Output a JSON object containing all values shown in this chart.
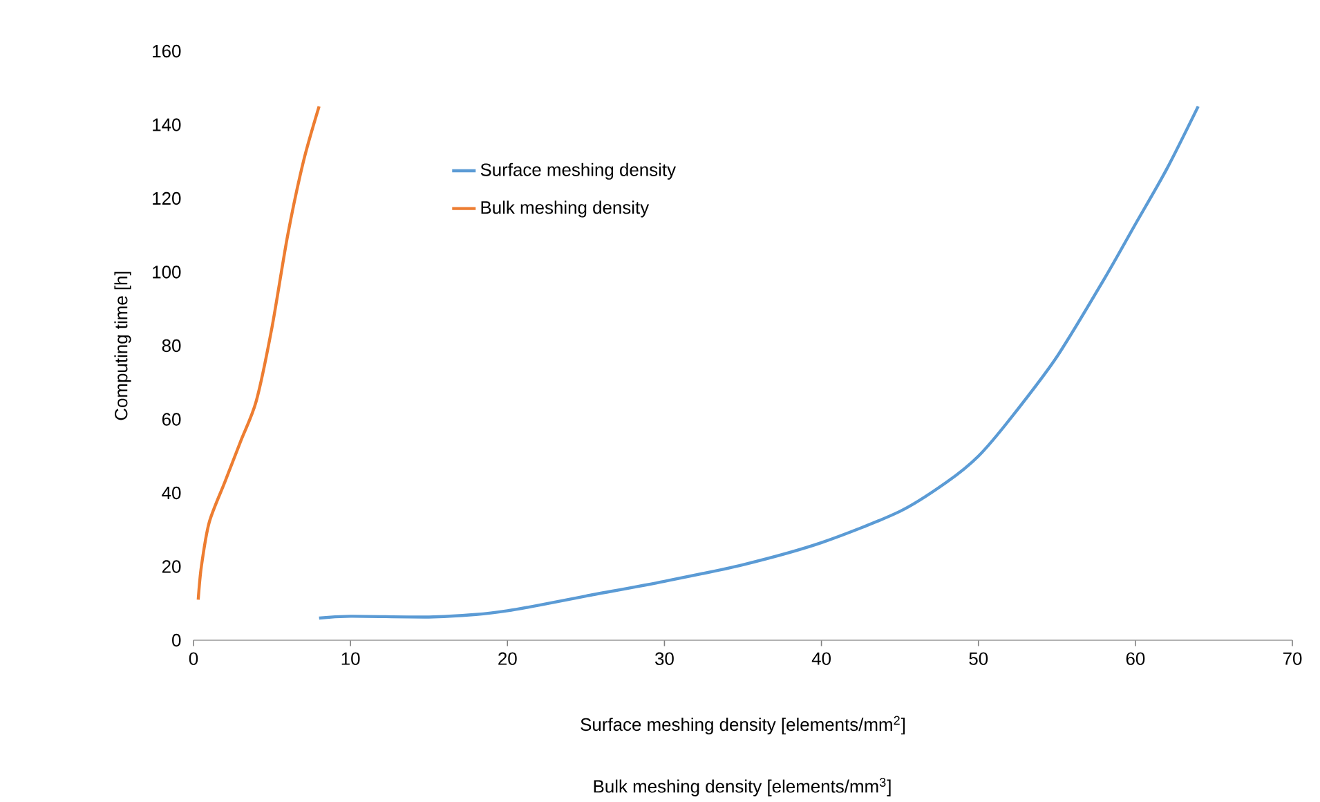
{
  "chart_data": {
    "type": "line",
    "xlabel": "Surface meshing density [elements/mm$^{2}$]",
    "ylabel": "Computing time [h]",
    "annotations": [
      "Bulk meshing density [elements/mm$^{3}$]"
    ],
    "xlim": [
      0,
      70
    ],
    "xticks": [
      0,
      10,
      20,
      30,
      40,
      50,
      60,
      70
    ],
    "ylim": [
      0,
      160
    ],
    "yticks": [
      0,
      20,
      40,
      60,
      80,
      100,
      120,
      140,
      160
    ],
    "grid": false,
    "legend": "top",
    "marker": "none",
    "line_style": "solid",
    "series": [
      {
        "name": "Surface meshing density",
        "color": "#5b9bd5",
        "x": [
          8,
          10,
          15,
          18,
          20,
          22,
          25,
          30,
          35,
          40,
          45,
          48,
          50,
          52,
          55,
          58,
          60,
          62,
          64
        ],
        "values": [
          6,
          6.5,
          6.3,
          7,
          8,
          9.5,
          12,
          16,
          20.5,
          26.5,
          35,
          43,
          50,
          60,
          77,
          98,
          113,
          128,
          145
        ]
      },
      {
        "name": "Bulk meshing density",
        "color": "#ed7d31",
        "x": [
          0.3,
          0.5,
          1,
          2,
          3,
          4,
          5,
          6,
          7,
          8
        ],
        "values": [
          11,
          20,
          32,
          43,
          54,
          65,
          85,
          110,
          130,
          145
        ]
      }
    ]
  }
}
